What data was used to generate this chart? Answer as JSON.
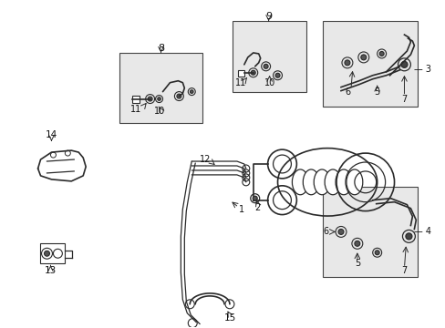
{
  "bg_color": "#ffffff",
  "line_color": "#2a2a2a",
  "box_bg": "#e8e8e8",
  "figsize": [
    4.89,
    3.6
  ],
  "dpi": 100
}
